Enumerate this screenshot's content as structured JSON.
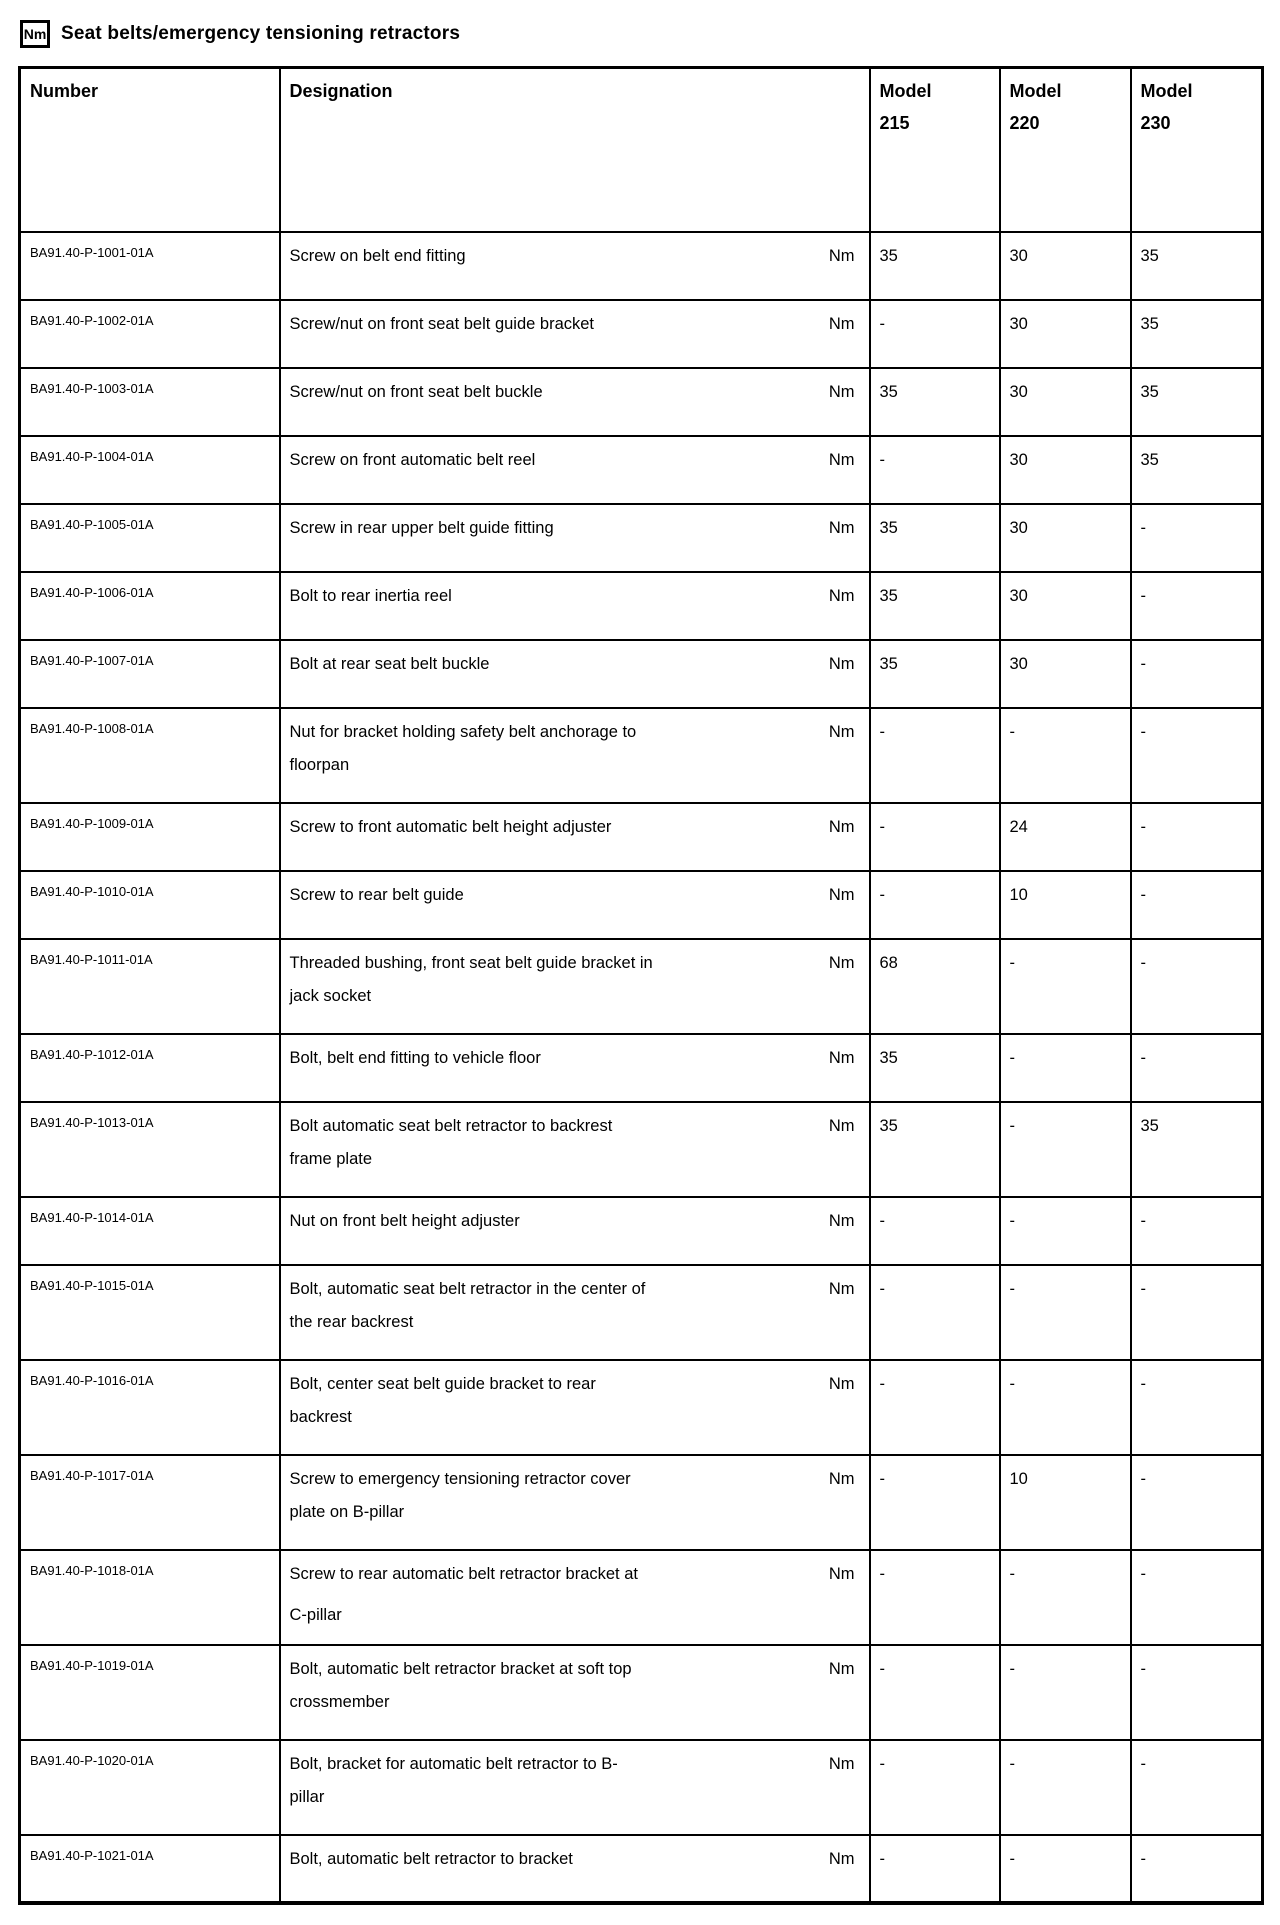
{
  "header": {
    "icon": "Nm",
    "title": "Seat belts/emergency tensioning retractors"
  },
  "table": {
    "columns": {
      "number": "Number",
      "designation": "Designation",
      "model_word": "Model",
      "model_numbers": [
        "215",
        "220",
        "230"
      ]
    },
    "unit_label": "Nm",
    "rows": [
      {
        "number": "BA91.40-P-1001-01A",
        "lines": [
          "Screw on belt end fitting"
        ],
        "values": [
          "35",
          "30",
          "35"
        ]
      },
      {
        "number": "BA91.40-P-1002-01A",
        "lines": [
          "Screw/nut on front seat belt guide bracket"
        ],
        "values": [
          "-",
          "30",
          "35"
        ]
      },
      {
        "number": "BA91.40-P-1003-01A",
        "lines": [
          "Screw/nut on front seat belt buckle"
        ],
        "values": [
          "35",
          "30",
          "35"
        ]
      },
      {
        "number": "BA91.40-P-1004-01A",
        "lines": [
          "Screw on front automatic belt reel"
        ],
        "values": [
          "-",
          "30",
          "35"
        ]
      },
      {
        "number": "BA91.40-P-1005-01A",
        "lines": [
          "Screw in rear upper belt guide fitting"
        ],
        "values": [
          "35",
          "30",
          "-"
        ]
      },
      {
        "number": "BA91.40-P-1006-01A",
        "lines": [
          "Bolt to rear inertia reel"
        ],
        "values": [
          "35",
          "30",
          "-"
        ]
      },
      {
        "number": "BA91.40-P-1007-01A",
        "lines": [
          "Bolt at rear seat belt buckle"
        ],
        "values": [
          "35",
          "30",
          "-"
        ]
      },
      {
        "number": "BA91.40-P-1008-01A",
        "lines": [
          "Nut for bracket holding safety belt anchorage to",
          "floorpan"
        ],
        "values": [
          "-",
          "-",
          "-"
        ]
      },
      {
        "number": "BA91.40-P-1009-01A",
        "lines": [
          "Screw to front automatic belt height adjuster"
        ],
        "values": [
          "-",
          "24",
          "-"
        ]
      },
      {
        "number": "BA91.40-P-1010-01A",
        "lines": [
          "Screw to rear belt guide"
        ],
        "values": [
          "-",
          "10",
          "-"
        ]
      },
      {
        "number": "BA91.40-P-1011-01A",
        "lines": [
          "Threaded bushing, front seat belt guide bracket in",
          "jack socket"
        ],
        "values": [
          "68",
          "-",
          "-"
        ]
      },
      {
        "number": "BA91.40-P-1012-01A",
        "lines": [
          "Bolt, belt end fitting to vehicle floor"
        ],
        "values": [
          "35",
          "-",
          "-"
        ]
      },
      {
        "number": "BA91.40-P-1013-01A",
        "lines": [
          "Bolt automatic seat belt retractor to backrest",
          "frame plate"
        ],
        "values": [
          "35",
          "-",
          "35"
        ]
      },
      {
        "number": "BA91.40-P-1014-01A",
        "lines": [
          "Nut on front belt height adjuster"
        ],
        "values": [
          "-",
          "-",
          "-"
        ]
      },
      {
        "number": "BA91.40-P-1015-01A",
        "lines": [
          "Bolt, automatic seat belt retractor in the center of",
          "the rear backrest"
        ],
        "values": [
          "-",
          "-",
          "-"
        ]
      },
      {
        "number": "BA91.40-P-1016-01A",
        "lines": [
          "Bolt, center seat belt guide bracket to rear",
          "backrest"
        ],
        "values": [
          "-",
          "-",
          "-"
        ]
      },
      {
        "number": "BA91.40-P-1017-01A",
        "lines": [
          "Screw to emergency tensioning retractor cover",
          "plate on B-pillar"
        ],
        "values": [
          "-",
          "10",
          "-"
        ]
      },
      {
        "number": "BA91.40-P-1018-01A",
        "lines": [
          "Screw to rear automatic belt retractor bracket at",
          "C-pillar"
        ],
        "spaced": true,
        "values": [
          "-",
          "-",
          "-"
        ]
      },
      {
        "number": "BA91.40-P-1019-01A",
        "lines": [
          "Bolt, automatic belt retractor bracket at soft top",
          "crossmember"
        ],
        "values": [
          "-",
          "-",
          "-"
        ]
      },
      {
        "number": "BA91.40-P-1020-01A",
        "lines": [
          "Bolt, bracket for automatic belt retractor to B-",
          "pillar"
        ],
        "values": [
          "-",
          "-",
          "-"
        ]
      },
      {
        "number": "BA91.40-P-1021-01A",
        "lines": [
          "Bolt, automatic belt retractor to bracket"
        ],
        "values": [
          "-",
          "-",
          "-"
        ]
      }
    ]
  }
}
